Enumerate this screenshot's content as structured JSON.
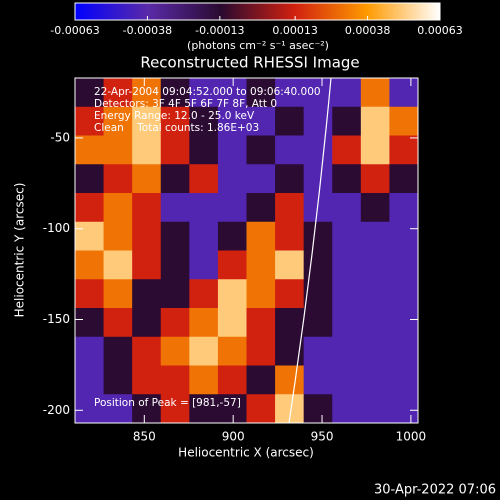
{
  "chart_data": {
    "type": "heatmap",
    "title": "Reconstructed RHESSI Image",
    "x_label": "Heliocentric X (arcsec)",
    "y_label": "Heliocentric Y (arcsec)",
    "colorbar_label": "(photons cm⁻² s⁻¹ asec⁻²)",
    "annotations": [
      "22-Apr-2004 09:04:52.000 to 09:06:40.000",
      "Detectors: 3F 4F 5F 6F 7F 8F, Att 0",
      "Energy Range: 12.0 - 25.0 keV",
      "Clean    Total counts: 1.86E+03"
    ],
    "peak_note": "Position of Peak = [981,-57]",
    "footer": "30-Apr-2022 07:06",
    "xlim": [
      811,
      1004
    ],
    "ylim": [
      -207,
      -17
    ],
    "xticks": [
      850,
      900,
      950,
      1000
    ],
    "yticks": [
      -50,
      -100,
      -150,
      -200
    ],
    "zlim": [
      -0.00063,
      0.00063
    ],
    "zticks": [
      -0.00063,
      -0.00038,
      -0.00013,
      0.00013,
      0.00038,
      0.00063
    ],
    "colormap": [
      "#0000ff",
      "#5a2aa8",
      "#2a0a30",
      "#d02010",
      "#ff9a00",
      "#ffffff"
    ],
    "z": [
      [
        -0.00013,
        0.00013,
        0.0003,
        -0.00013,
        -0.0004,
        -0.0004,
        -0.00013,
        -0.0004,
        -0.0004,
        -0.0004,
        0.0003,
        -0.0004
      ],
      [
        0.00013,
        0.0003,
        0.0005,
        0.00013,
        -0.00013,
        -0.0004,
        -0.0004,
        -0.00013,
        -0.0004,
        -0.00013,
        0.0005,
        0.0003
      ],
      [
        0.0003,
        0.0003,
        0.0005,
        0.00013,
        -0.00013,
        -0.0004,
        -0.00013,
        -0.0004,
        -0.0004,
        0.00013,
        0.0005,
        0.00013
      ],
      [
        -0.00013,
        0.00013,
        0.0003,
        -0.00013,
        0.00013,
        -0.0004,
        -0.0004,
        -0.00013,
        -0.0004,
        -0.00013,
        0.00013,
        -0.00013
      ],
      [
        0.00013,
        0.0003,
        0.00013,
        -0.0004,
        -0.0004,
        -0.0004,
        -0.00013,
        0.00013,
        -0.0004,
        -0.0004,
        -0.00013,
        -0.0004
      ],
      [
        0.0005,
        0.0003,
        0.00013,
        -0.00013,
        -0.0004,
        -0.00013,
        0.0003,
        0.00013,
        -0.00013,
        -0.0004,
        -0.0004,
        -0.0004
      ],
      [
        0.0003,
        0.0005,
        0.00013,
        -0.00013,
        -0.0004,
        0.00013,
        0.0003,
        0.0005,
        -0.00013,
        -0.0004,
        -0.0004,
        -0.0004
      ],
      [
        0.00013,
        0.0003,
        -0.00013,
        -0.00013,
        0.00013,
        0.0005,
        0.0003,
        0.00013,
        -0.00013,
        -0.0004,
        -0.0004,
        -0.0004
      ],
      [
        -0.00013,
        0.00013,
        -0.00013,
        0.00013,
        0.0003,
        0.0005,
        0.00013,
        -0.00013,
        -0.00013,
        -0.0004,
        -0.0004,
        -0.0004
      ],
      [
        -0.0004,
        -0.00013,
        0.00013,
        0.0003,
        0.0005,
        0.0003,
        0.00013,
        -0.00013,
        -0.0004,
        -0.0004,
        -0.0004,
        -0.0004
      ],
      [
        -0.0004,
        -0.00013,
        0.00013,
        0.00013,
        0.0003,
        0.00013,
        -0.00013,
        0.0003,
        -0.0004,
        -0.0004,
        -0.0004,
        -0.0004
      ],
      [
        -0.0004,
        -0.0004,
        -0.00013,
        0.00013,
        -0.00013,
        -0.00013,
        0.00013,
        0.0005,
        -0.00013,
        -0.0004,
        -0.0004,
        -0.0004
      ]
    ]
  }
}
